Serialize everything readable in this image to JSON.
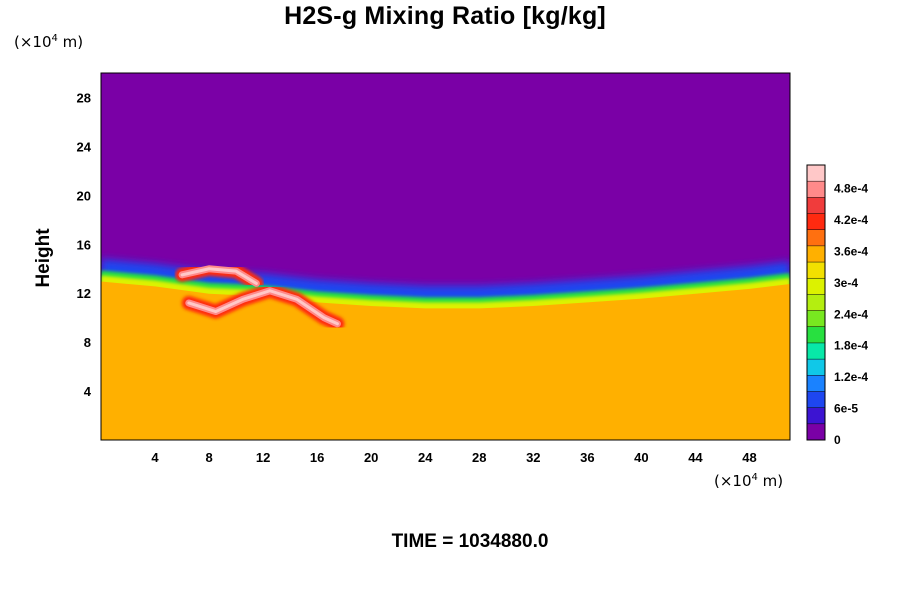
{
  "chart_data": {
    "type": "heatmap",
    "title": "H2S-g Mixing Ratio [kg/kg]",
    "xlabel": "",
    "ylabel": "Height",
    "x_unit_label": "(×10",
    "x_unit_exp": "4",
    "x_unit_suffix": " m)",
    "y_unit_label": "(×10",
    "y_unit_exp": "4",
    "y_unit_suffix": " m)",
    "xlim": [
      0,
      51
    ],
    "ylim": [
      0,
      30
    ],
    "x_ticks": [
      4,
      8,
      12,
      16,
      20,
      24,
      28,
      32,
      36,
      40,
      44,
      48
    ],
    "y_ticks": [
      4,
      8,
      12,
      16,
      20,
      24,
      28
    ],
    "colorbar": {
      "min": 0,
      "max": 0.000525,
      "ticks": [
        {
          "value": 0,
          "label": "0"
        },
        {
          "value": 6e-05,
          "label": "6e-5"
        },
        {
          "value": 0.00012,
          "label": "1.2e-4"
        },
        {
          "value": 0.00018,
          "label": "1.8e-4"
        },
        {
          "value": 0.00024,
          "label": "2.4e-4"
        },
        {
          "value": 0.0003,
          "label": "3e-4"
        },
        {
          "value": 0.00036,
          "label": "3.6e-4"
        },
        {
          "value": 0.00042,
          "label": "4.2e-4"
        },
        {
          "value": 0.00048,
          "label": "4.8e-4"
        }
      ],
      "colors": [
        "#7a00a6",
        "#3c14d2",
        "#1e46f0",
        "#1a82ff",
        "#10c8e8",
        "#08e8a8",
        "#28e040",
        "#78e820",
        "#b4ee10",
        "#dcf200",
        "#f2e000",
        "#ffb000",
        "#ff7010",
        "#ff2a10",
        "#f03c3c",
        "#ff8a8a",
        "#ffc8c8"
      ]
    },
    "field_summary": {
      "lower_layer_value": 0.00035,
      "upper_layer_value": 0,
      "interface_height": [
        13.2,
        12.8,
        12.2,
        12.0,
        11.5,
        11.2,
        11.0,
        11.0,
        11.2,
        11.5,
        11.8,
        12.2,
        12.6,
        13.0
      ],
      "interface_x": [
        0,
        4,
        8,
        12,
        16,
        20,
        24,
        28,
        32,
        36,
        40,
        44,
        48,
        51
      ],
      "plume": [
        {
          "x": [
            6.5,
            8.5,
            10.5,
            12.5,
            14.5,
            16.5,
            17.5
          ],
          "y": [
            11.2,
            10.5,
            11.5,
            12.2,
            11.5,
            10.0,
            9.5
          ],
          "peak": 0.0005
        },
        {
          "x": [
            6.0,
            8.0,
            10.0,
            11.5
          ],
          "y": [
            13.5,
            14.0,
            13.8,
            12.8
          ],
          "peak": 0.0005
        }
      ]
    }
  },
  "time_label": "TIME = 1034880.0"
}
